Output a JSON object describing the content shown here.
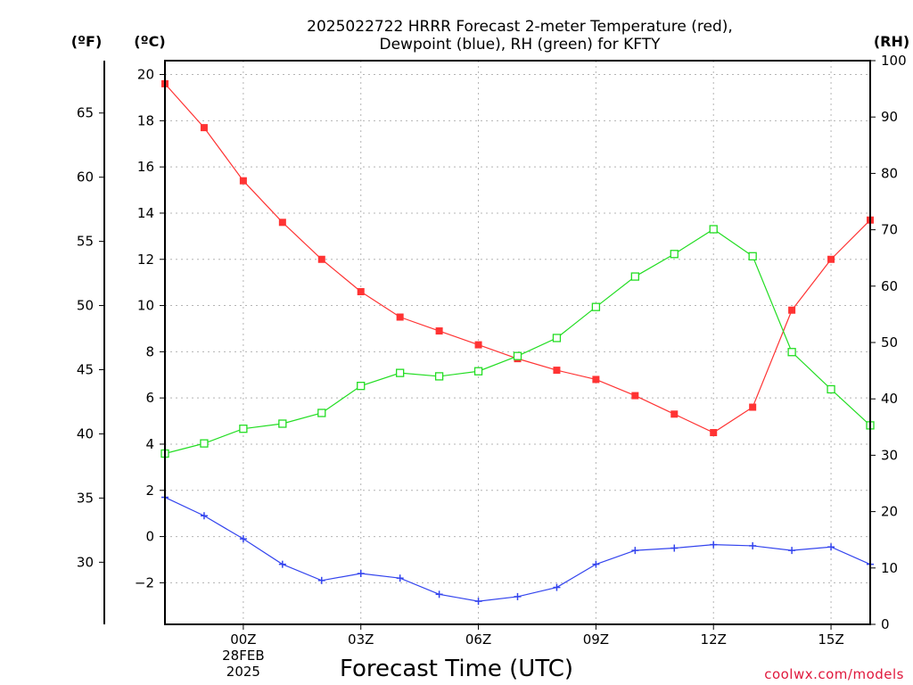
{
  "chart_data": {
    "type": "line",
    "title_lines": [
      "2025022722 HRRR Forecast 2-meter Temperature (red),",
      "Dewpoint (blue), RH (green) for KFTY"
    ],
    "unit_labels": {
      "fahrenheit": "(ºF)",
      "celsius": "(ºC)",
      "rh": "(RH)"
    },
    "xlabel": "Forecast Time (UTC)",
    "credit": "coolwx.com/models",
    "x_hours": [
      -2,
      -1,
      0,
      1,
      2,
      3,
      4,
      5,
      6,
      7,
      8,
      9,
      10,
      11,
      12,
      13,
      14,
      15,
      16
    ],
    "x_ticks": [
      {
        "hour": 0,
        "lines": [
          "00Z",
          "28FEB",
          "2025"
        ]
      },
      {
        "hour": 3,
        "lines": [
          "03Z"
        ]
      },
      {
        "hour": 6,
        "lines": [
          "06Z"
        ]
      },
      {
        "hour": 9,
        "lines": [
          "09Z"
        ]
      },
      {
        "hour": 12,
        "lines": [
          "12Z"
        ]
      },
      {
        "hour": 15,
        "lines": [
          "15Z"
        ]
      }
    ],
    "celsius_axis": {
      "range": [
        -3.8,
        20.6
      ],
      "ticks": [
        "20",
        "18",
        "16",
        "14",
        "12",
        "10",
        "8",
        "6",
        "4",
        "2",
        "0",
        "−2"
      ],
      "tick_values": [
        20,
        18,
        16,
        14,
        12,
        10,
        8,
        6,
        4,
        2,
        0,
        -2
      ]
    },
    "fahrenheit_ticks": [
      "65",
      "60",
      "55",
      "50",
      "45",
      "40",
      "35",
      "30"
    ],
    "fahrenheit_values": [
      65,
      60,
      55,
      50,
      45,
      40,
      35,
      30
    ],
    "rh_axis": {
      "range": [
        0,
        100
      ],
      "ticks": [
        "100",
        "90",
        "80",
        "70",
        "60",
        "50",
        "40",
        "30",
        "20",
        "10",
        "0"
      ],
      "tick_values": [
        100,
        90,
        80,
        70,
        60,
        50,
        40,
        30,
        20,
        10,
        0
      ]
    },
    "series": [
      {
        "key": "temperature",
        "color": "#ff3333",
        "marker": "filled-square",
        "axis": "celsius",
        "values": [
          19.6,
          17.7,
          15.4,
          13.6,
          12.0,
          10.6,
          9.5,
          8.9,
          8.3,
          7.7,
          7.2,
          6.8,
          6.1,
          5.3,
          4.5,
          5.6,
          9.8,
          12.0,
          13.7
        ]
      },
      {
        "key": "dewpoint",
        "color": "#3344ee",
        "marker": "plus",
        "axis": "celsius",
        "values": [
          1.7,
          0.9,
          -0.1,
          -1.2,
          -1.9,
          -1.6,
          -1.8,
          -2.5,
          -2.8,
          -2.6,
          -2.2,
          -1.2,
          -0.6,
          -0.5,
          -0.35,
          -0.4,
          -0.6,
          -0.45,
          -1.2
        ]
      },
      {
        "key": "rh",
        "color": "#22dd22",
        "marker": "open-square",
        "axis": "rh",
        "values": [
          30.3,
          32.1,
          34.7,
          35.6,
          37.5,
          42.3,
          44.6,
          44.0,
          44.9,
          47.6,
          50.8,
          56.3,
          61.7,
          65.7,
          70.1,
          65.3,
          48.3,
          41.7,
          35.3
        ]
      }
    ]
  }
}
